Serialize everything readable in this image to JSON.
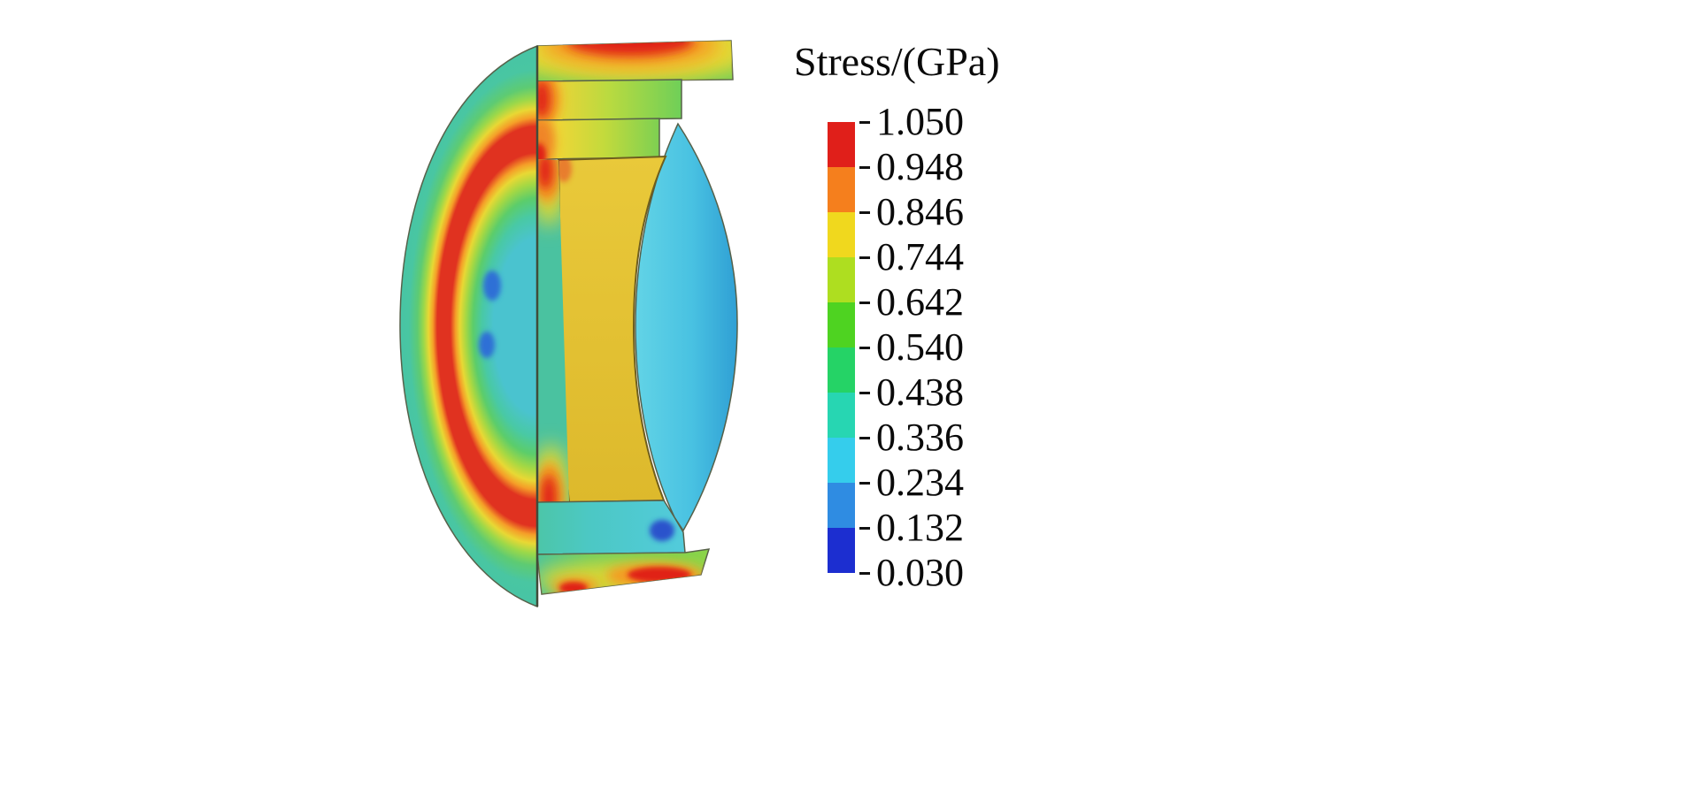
{
  "figure": {
    "background": "#ffffff",
    "legend": {
      "title": "Stress/(GPa)",
      "values": [
        "1.050",
        "0.948",
        "0.846",
        "0.744",
        "0.642",
        "0.540",
        "0.438",
        "0.336",
        "0.234",
        "0.132",
        "0.030"
      ],
      "band_colors": [
        "#e01f1a",
        "#f57f1d",
        "#f0d81e",
        "#aede20",
        "#4ed321",
        "#25d366",
        "#27d6b2",
        "#35cdec",
        "#2f8ce2",
        "#1c2ed0"
      ]
    },
    "model_palette": {
      "max_stress_red": "#e02418",
      "orange": "#f59a22",
      "yellow": "#e8d834",
      "green": "#5ecb72",
      "teal": "#46c3a6",
      "interior_cyan": "#4ac3cf",
      "bore_cyan": "#49c2e2",
      "min_stress_blue": "#2f6fd6",
      "cut_face_yellow": "#e2c235",
      "edge_outline": "#57614a"
    }
  },
  "chart_data": {
    "type": "heatmap",
    "title": "Stress/(GPa)",
    "unit": "GPa",
    "subject": "3-D finite-element stress contour plot of a quarter-sectioned circular ring / lens-mount component",
    "colorbar": {
      "orientation": "vertical",
      "legend_position": "right",
      "max": 1.05,
      "min": 0.03,
      "step": 0.102,
      "tick_labels": [
        "1.050",
        "0.948",
        "0.846",
        "0.744",
        "0.642",
        "0.540",
        "0.438",
        "0.336",
        "0.234",
        "0.132",
        "0.030"
      ],
      "band_colors_top_to_bottom": [
        "#e01f1a",
        "#f57f1d",
        "#f0d81e",
        "#aede20",
        "#4ed321",
        "#25d366",
        "#27d6b2",
        "#35cdec",
        "#2f8ce2",
        "#1c2ed0"
      ]
    },
    "observed_features": [
      {
        "region": "outer curved shell surface (general field)",
        "approx_stress_gpa": "0.34 - 0.54",
        "color": "teal-green"
      },
      {
        "region": "concentric annular band on outer shell",
        "approx_stress_gpa": "0.95 - 1.05",
        "color": "red"
      },
      {
        "region": "central area of outer shell",
        "approx_stress_gpa": "0.23 - 0.34",
        "color": "cyan"
      },
      {
        "region": "two small spots near shell center",
        "approx_stress_gpa": "0.13 - 0.23",
        "color": "blue"
      },
      {
        "region": "section-cut annulus face",
        "approx_stress_gpa": "0.74 - 0.85",
        "color": "yellow"
      },
      {
        "region": "inner bore surface",
        "approx_stress_gpa": "0.23 - 0.34",
        "color": "cyan"
      },
      {
        "region": "hot spots at top edge, bottom edge and along the cut line",
        "approx_stress_gpa": "0.95 - 1.05",
        "color": "red"
      }
    ]
  }
}
